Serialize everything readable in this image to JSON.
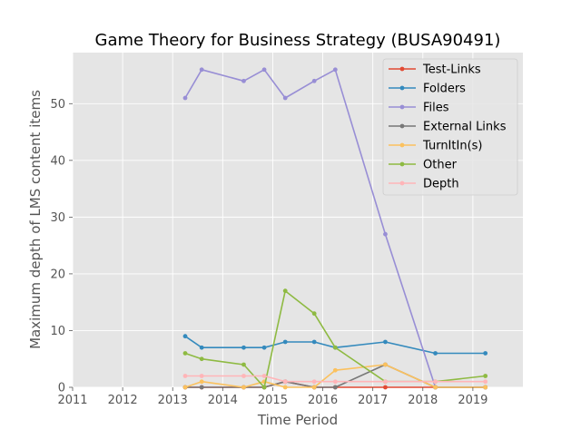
{
  "chart_data": {
    "type": "line",
    "title": "Game Theory for Business Strategy (BUSA90491)",
    "xlabel": "Time Period",
    "ylabel": "Maximum depth of LMS content items",
    "xlim": [
      2011,
      2020
    ],
    "ylim": [
      0,
      59
    ],
    "x_ticks": [
      "2011",
      "2012",
      "2013",
      "2014",
      "2015",
      "2016",
      "2017",
      "2018",
      "2019"
    ],
    "y_ticks": [
      "0",
      "10",
      "20",
      "30",
      "40",
      "50"
    ],
    "grid": true,
    "legend_position": "top-right",
    "x": [
      2013.25,
      2013.58,
      2014.42,
      2014.83,
      2015.25,
      2015.83,
      2016.25,
      2017.25,
      2018.25,
      2019.25
    ],
    "series": [
      {
        "name": "Test-Links",
        "color": "#E24A33",
        "values": [
          0,
          0,
          0,
          0,
          1,
          0,
          0,
          0,
          0,
          0
        ]
      },
      {
        "name": "Folders",
        "color": "#348ABD",
        "values": [
          9,
          7,
          7,
          7,
          8,
          8,
          7,
          8,
          6,
          6
        ]
      },
      {
        "name": "Files",
        "color": "#988ED5",
        "values": [
          51,
          56,
          54,
          56,
          51,
          54,
          56,
          27,
          0,
          0
        ]
      },
      {
        "name": "External Links",
        "color": "#777777",
        "values": [
          0,
          0,
          0,
          0,
          1,
          0,
          0,
          4,
          0,
          0
        ]
      },
      {
        "name": "TurnItIn(s)",
        "color": "#FBC15E",
        "values": [
          0,
          1,
          0,
          1,
          0,
          0,
          3,
          4,
          0,
          0
        ]
      },
      {
        "name": "Other",
        "color": "#8EBA42",
        "values": [
          6,
          5,
          4,
          0,
          17,
          13,
          7,
          1,
          1,
          2
        ]
      },
      {
        "name": "Depth",
        "color": "#FFB5B8",
        "values": [
          2,
          2,
          2,
          2,
          1,
          1,
          1,
          1,
          1,
          1
        ]
      }
    ]
  }
}
